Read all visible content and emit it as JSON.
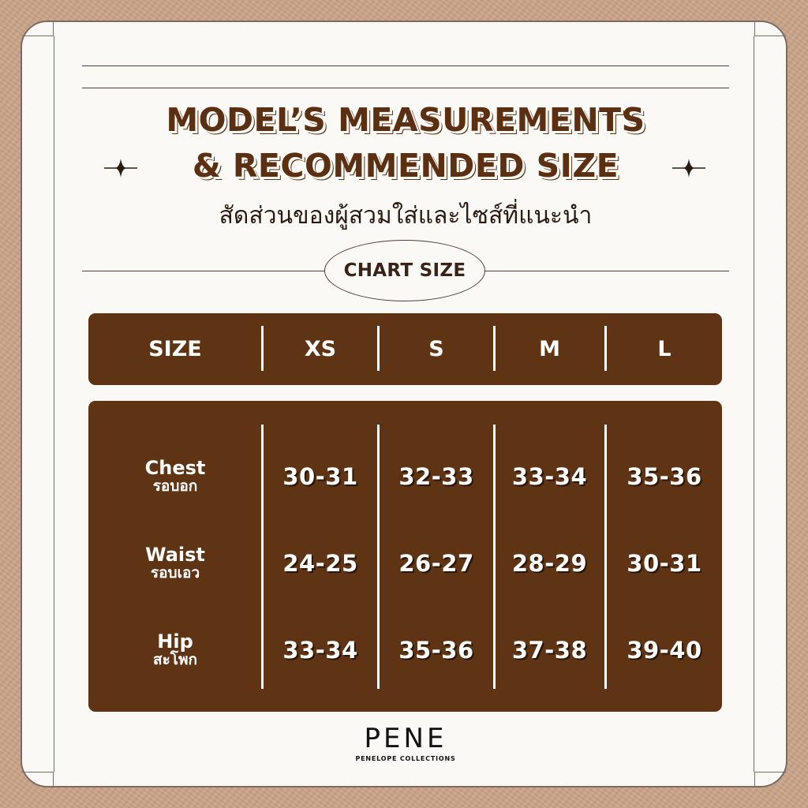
{
  "title": {
    "line1": "MODEL’S MEASUREMENTS",
    "line2": "& RECOMMENDED SIZE",
    "subtitle_th": "สัดส่วนของผู้สวมใส่และไซส์ที่แนะนำ"
  },
  "badge": {
    "label": "CHART SIZE"
  },
  "table": {
    "header": {
      "label": "SIZE",
      "sizes": [
        "XS",
        "S",
        "M",
        "L"
      ]
    },
    "rows": [
      {
        "label_en": "Chest",
        "label_th": "รอบอก",
        "values": [
          "30-31",
          "32-33",
          "33-34",
          "35-36"
        ]
      },
      {
        "label_en": "Waist",
        "label_th": "รอบเอว",
        "values": [
          "24-25",
          "26-27",
          "28-29",
          "30-31"
        ]
      },
      {
        "label_en": "Hip",
        "label_th": "สะโพก",
        "values": [
          "33-34",
          "35-36",
          "37-38",
          "39-40"
        ]
      }
    ]
  },
  "brand": {
    "logo": "PENE",
    "tagline": "PENELOPE COLLECTIONS"
  },
  "colors": {
    "brown": "#5e3414",
    "title_brown": "#5a2f12",
    "card": "#fbf9f5",
    "background": "#c9a488"
  },
  "icons": {
    "sparkle": "four-point-star-icon"
  }
}
